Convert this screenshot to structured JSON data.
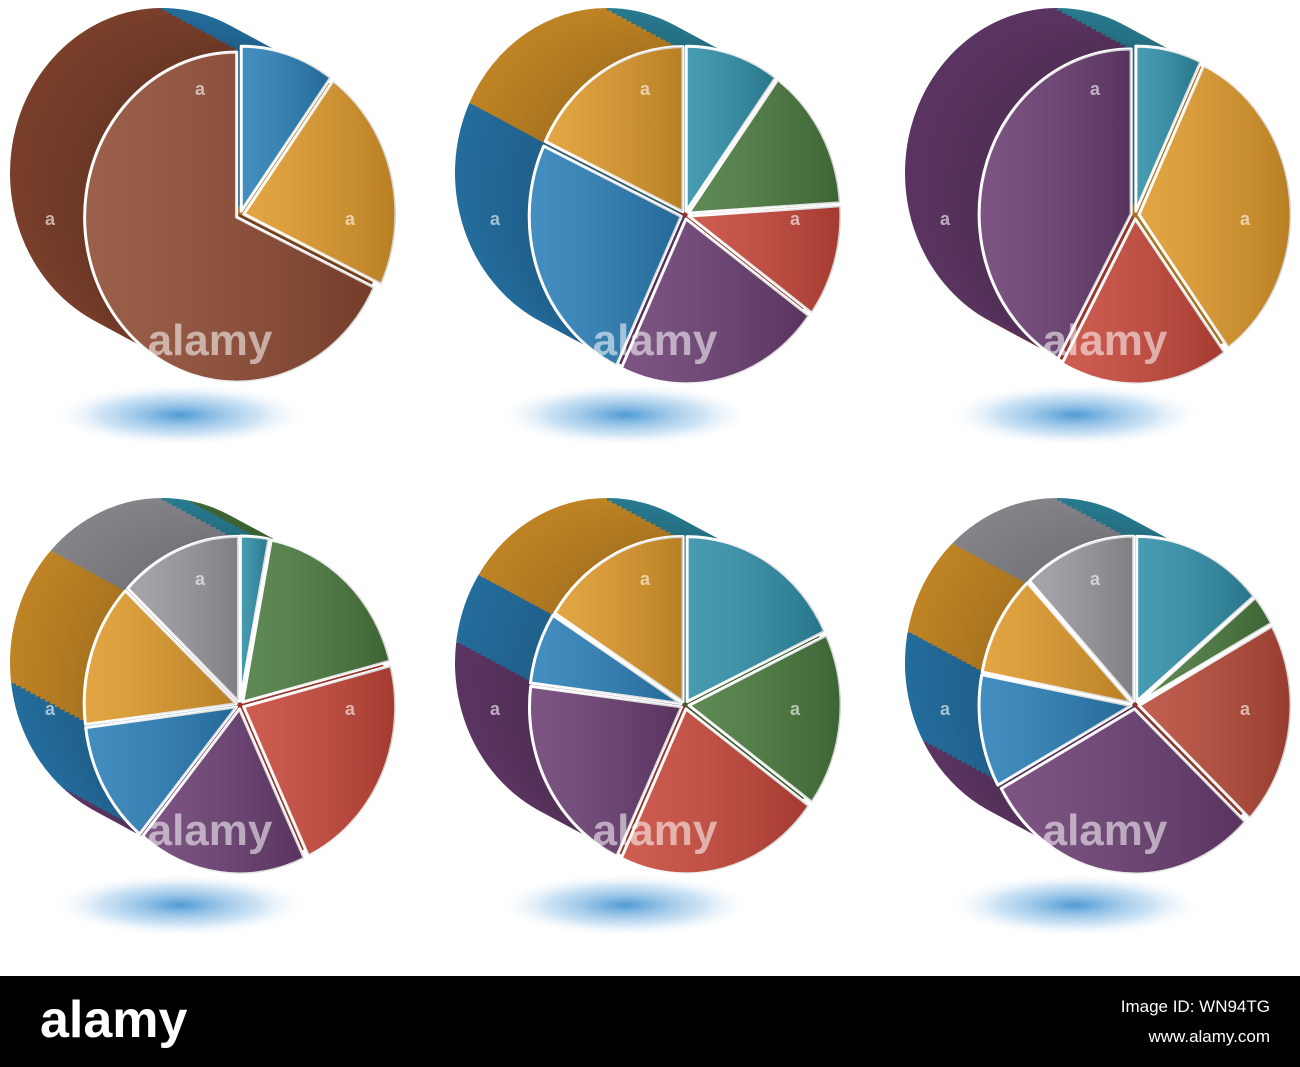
{
  "chart_data": [
    {
      "type": "pie",
      "values": [
        10,
        22,
        68
      ],
      "colors": [
        "#2a7fb8",
        "#e09a2a",
        "#8e4a32"
      ]
    },
    {
      "type": "pie",
      "values": [
        10,
        14,
        11,
        22,
        25,
        18
      ],
      "colors": [
        "#2f8fa8",
        "#4a7a3e",
        "#c8473a",
        "#6b3e72",
        "#2a7fb8",
        "#e09a2a"
      ]
    },
    {
      "type": "pie",
      "values": [
        7,
        33,
        18,
        42
      ],
      "colors": [
        "#2f8fa8",
        "#e09a2a",
        "#c8473a",
        "#6b3e72"
      ]
    },
    {
      "type": "pie",
      "values": [
        3,
        18,
        22,
        18,
        12,
        14,
        13
      ],
      "colors": [
        "#2f8fa8",
        "#4a7a3e",
        "#c8473a",
        "#6b3e72",
        "#2a7fb8",
        "#e09a2a",
        "#9a9aa0"
      ]
    },
    {
      "type": "pie",
      "values": [
        18,
        17,
        22,
        20,
        7,
        16
      ],
      "colors": [
        "#2f8fa8",
        "#4a7a3e",
        "#c8473a",
        "#6b3e72",
        "#2a7fb8",
        "#e09a2a"
      ]
    },
    {
      "type": "pie",
      "values": [
        14,
        3,
        20,
        30,
        11,
        10,
        12
      ],
      "colors": [
        "#2f8fa8",
        "#4a7a3e",
        "#b84a38",
        "#6b3e72",
        "#2a7fb8",
        "#e09a2a",
        "#9a9aa0"
      ]
    }
  ],
  "watermark": "alamy",
  "watermark_letter": "a",
  "footer": {
    "logo": "alamy",
    "image_id": "Image ID: WN94TG",
    "url": "www.alamy.com"
  }
}
